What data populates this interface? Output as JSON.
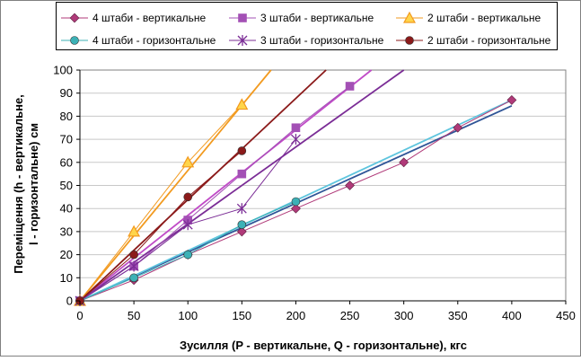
{
  "chart_data": {
    "type": "line",
    "title": "",
    "xlabel": "Зусилля (P - вертикальне, Q - горизонтальне), кгс",
    "ylabel_line1": "Переміщення (h - вертикальне,",
    "ylabel_line2": "l - горизонтальне) см",
    "xlim": [
      0,
      450
    ],
    "ylim": [
      0,
      100
    ],
    "xticks": [
      0,
      50,
      100,
      150,
      200,
      250,
      300,
      350,
      400,
      450
    ],
    "yticks": [
      0,
      10,
      20,
      30,
      40,
      50,
      60,
      70,
      80,
      90,
      100
    ],
    "grid": "horizontal",
    "legend_position": "top",
    "series": [
      {
        "name": "4 штаби - вертикальне",
        "color": "#b03a79",
        "marker": "diamond",
        "x": [
          0,
          50,
          100,
          150,
          200,
          250,
          300,
          350,
          400
        ],
        "y": [
          0,
          9,
          20,
          30,
          40,
          50,
          60,
          75,
          87
        ],
        "trend_color": "#2f5597",
        "trend_end": [
          400,
          84.5
        ]
      },
      {
        "name": "3 штаби - вертикальне",
        "color": "#a350b5",
        "marker": "square",
        "x": [
          0,
          50,
          100,
          150,
          200,
          250
        ],
        "y": [
          0,
          15,
          35,
          55,
          75,
          93
        ],
        "trend_color": "#c04bc7",
        "trend_end": [
          270,
          100
        ]
      },
      {
        "name": "2 штаби - вертикальне",
        "color": "#f29a1f",
        "marker": "triangle",
        "x": [
          0,
          50,
          100,
          150
        ],
        "y": [
          0,
          30,
          60,
          85
        ],
        "trend_color": "#f29a1f",
        "trend_end": [
          177,
          100
        ]
      },
      {
        "name": "4 штаби - горизонтальне",
        "color": "#3cb1b6",
        "marker": "circle",
        "x": [
          0,
          50,
          100,
          150,
          200
        ],
        "y": [
          0,
          10,
          20,
          33,
          43
        ],
        "trend_color": "#5ec5de",
        "trend_end": [
          400,
          87
        ]
      },
      {
        "name": "3 штаби - горизонтальне",
        "color": "#7b2d96",
        "marker": "star",
        "x": [
          0,
          50,
          100,
          150,
          200
        ],
        "y": [
          0,
          15,
          33,
          40,
          70
        ],
        "trend_color": "#7b2d96",
        "trend_end": [
          300,
          100
        ]
      },
      {
        "name": "2 штаби - горизонтальне",
        "color": "#8b1a1a",
        "marker": "circle",
        "x": [
          0,
          50,
          100,
          150
        ],
        "y": [
          0,
          20,
          45,
          65
        ],
        "trend_color": "#8b1a1a",
        "trend_end": [
          228,
          100
        ]
      }
    ]
  }
}
